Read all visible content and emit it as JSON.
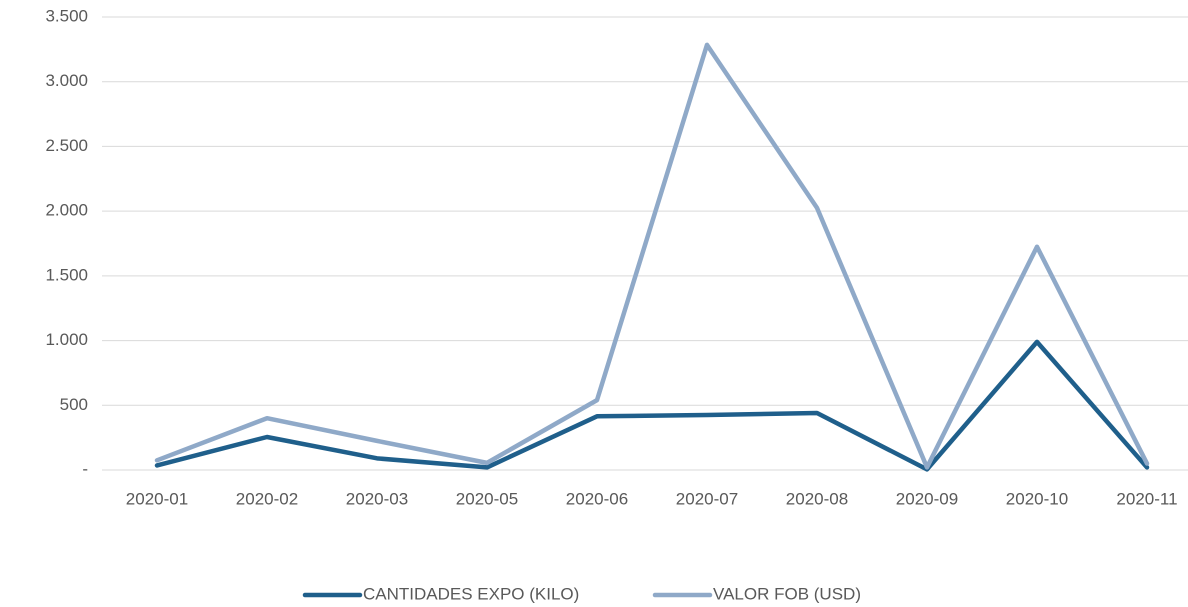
{
  "chart_data": {
    "type": "line",
    "categories": [
      "2020-01",
      "2020-02",
      "2020-03",
      "2020-05",
      "2020-06",
      "2020-07",
      "2020-08",
      "2020-09",
      "2020-10",
      "2020-11"
    ],
    "series": [
      {
        "name": "CANTIDADES EXPO (KILO)",
        "color": "#1f5f8b",
        "values": [
          35,
          255,
          90,
          20,
          415,
          425,
          440,
          5,
          990,
          20
        ]
      },
      {
        "name": "VALOR FOB (USD)",
        "color": "#8fa9c8",
        "values": [
          75,
          400,
          225,
          55,
          540,
          3285,
          2025,
          20,
          1725,
          50
        ]
      }
    ],
    "ylim": [
      0,
      3500
    ],
    "yticks": [
      {
        "value": 0,
        "label": "-"
      },
      500,
      {
        "value": 1000,
        "label": "1.000"
      },
      {
        "value": 1500,
        "label": "1.500"
      },
      {
        "value": 2000,
        "label": "2.000"
      },
      {
        "value": 2500,
        "label": "2.500"
      },
      {
        "value": 3000,
        "label": "3.000"
      },
      {
        "value": 3500,
        "label": "3.500"
      }
    ],
    "grid": true,
    "legend": "bottom"
  }
}
